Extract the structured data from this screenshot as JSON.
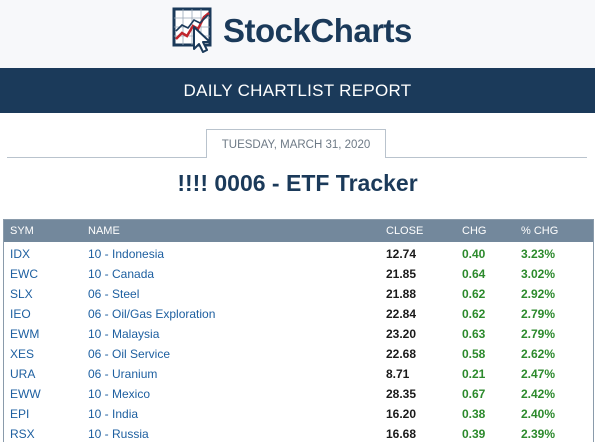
{
  "brand": {
    "name": "StockCharts",
    "logo_icon": "stockcharts-logo-icon"
  },
  "banner": {
    "title": "DAILY CHARTLIST REPORT"
  },
  "report": {
    "date": "TUESDAY, MARCH 31, 2020",
    "title": "!!!! 0006 - ETF Tracker"
  },
  "table": {
    "headers": {
      "sym": "SYM",
      "name": "NAME",
      "close": "CLOSE",
      "chg": "CHG",
      "pct": "% CHG"
    },
    "rows": [
      {
        "sym": "IDX",
        "name": "10 - Indonesia",
        "close": "12.74",
        "chg": "0.40",
        "pct": "3.23%"
      },
      {
        "sym": "EWC",
        "name": "10 - Canada",
        "close": "21.85",
        "chg": "0.64",
        "pct": "3.02%"
      },
      {
        "sym": "SLX",
        "name": "06 - Steel",
        "close": "21.88",
        "chg": "0.62",
        "pct": "2.92%"
      },
      {
        "sym": "IEO",
        "name": "06 - Oil/Gas Exploration",
        "close": "22.84",
        "chg": "0.62",
        "pct": "2.79%"
      },
      {
        "sym": "EWM",
        "name": "10 - Malaysia",
        "close": "23.20",
        "chg": "0.63",
        "pct": "2.79%"
      },
      {
        "sym": "XES",
        "name": "06 - Oil Service",
        "close": "22.68",
        "chg": "0.58",
        "pct": "2.62%"
      },
      {
        "sym": "URA",
        "name": "06 - Uranium",
        "close": "8.71",
        "chg": "0.21",
        "pct": "2.47%"
      },
      {
        "sym": "EWW",
        "name": "10 - Mexico",
        "close": "28.35",
        "chg": "0.67",
        "pct": "2.42%"
      },
      {
        "sym": "EPI",
        "name": "10 - India",
        "close": "16.20",
        "chg": "0.38",
        "pct": "2.40%"
      },
      {
        "sym": "RSX",
        "name": "10 - Russia",
        "close": "16.68",
        "chg": "0.39",
        "pct": "2.39%"
      }
    ]
  },
  "colors": {
    "navy": "#1b3a5a",
    "link": "#1d5fa0",
    "positive": "#2c8a2c",
    "header_bg": "#73889c"
  }
}
